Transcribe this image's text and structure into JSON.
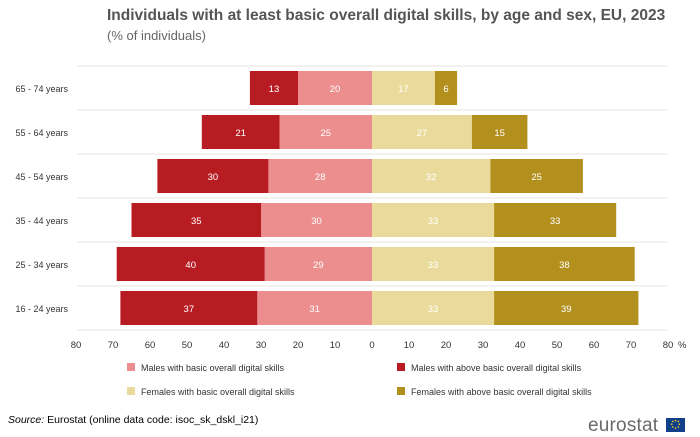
{
  "title": "Individuals with at least basic overall digital skills, by age and sex, EU, 2023",
  "subtitle": "(% of individuals)",
  "chart_data": {
    "type": "bar",
    "orientation": "horizontal-diverging",
    "categories": [
      "65 - 74 years",
      "55 - 64 years",
      "45 - 54 years",
      "35 - 44 years",
      "25 - 34 years",
      "16 - 24 years"
    ],
    "series": [
      {
        "name": "Males with basic overall digital skills",
        "side": "left",
        "color": "#ec8e8e",
        "label_color": "#ffffff",
        "values": [
          20,
          25,
          28,
          30,
          29,
          31
        ]
      },
      {
        "name": "Males with above basic overall digital skills",
        "side": "left",
        "color": "#b81c23",
        "label_color": "#ffffff",
        "values": [
          13,
          21,
          30,
          35,
          40,
          37
        ]
      },
      {
        "name": "Females with basic overall digital skills",
        "side": "right",
        "color": "#eadb9c",
        "label_color": "#ffffff",
        "values": [
          17,
          27,
          32,
          33,
          33,
          33
        ]
      },
      {
        "name": "Females with above basic overall digital skills",
        "side": "right",
        "color": "#b38f1e",
        "label_color": "#ffffff",
        "values": [
          6,
          15,
          25,
          33,
          38,
          39
        ]
      }
    ],
    "x_ticks": [
      "80",
      "70",
      "60",
      "50",
      "40",
      "30",
      "20",
      "10",
      "0",
      "10",
      "20",
      "30",
      "40",
      "50",
      "60",
      "70",
      "80"
    ],
    "x_unit": "%",
    "xlim": [
      -80,
      80
    ],
    "legend_position": "bottom"
  },
  "footer": {
    "source_label": "Source:",
    "source_text": " Eurostat (online data code: isoc_sk_dskl_i21)"
  },
  "logo": {
    "text": "eurostat"
  }
}
